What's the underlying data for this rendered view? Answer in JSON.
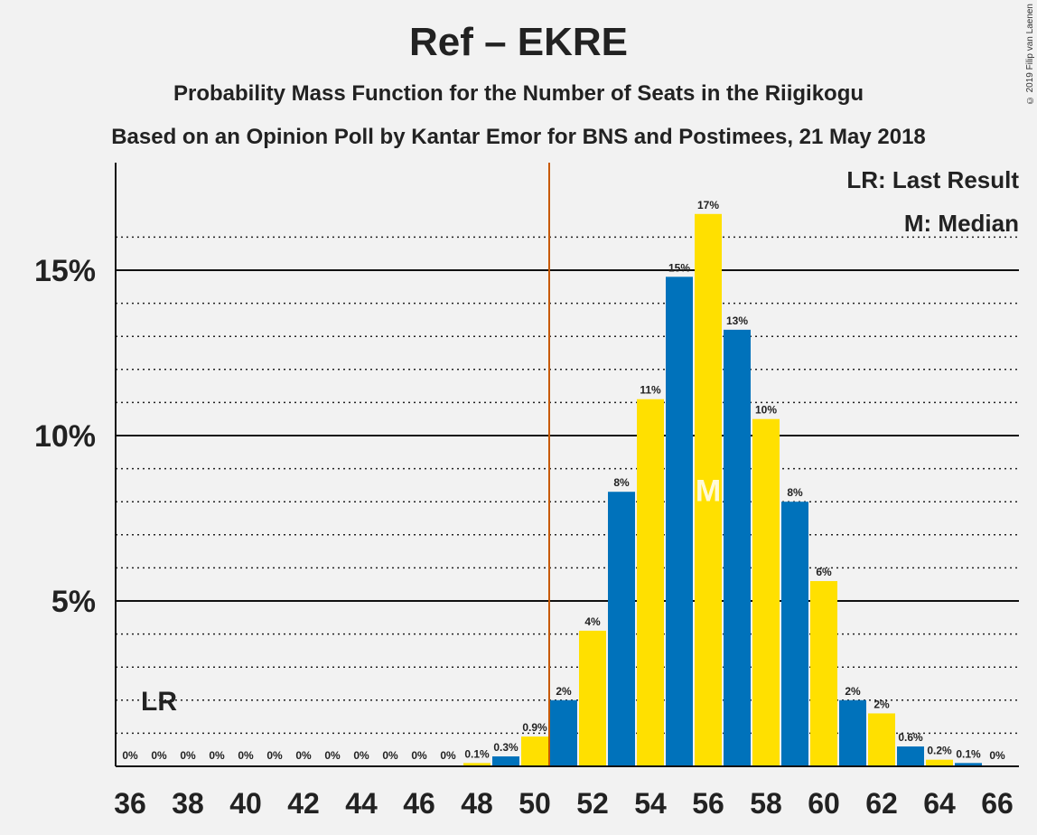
{
  "title": "Ref – EKRE",
  "subtitle": "Probability Mass Function for the Number of Seats in the Riigikogu",
  "subtitle2": "Based on an Opinion Poll by Kantar Emor for BNS and Postimees, 21 May 2018",
  "copyright": "© 2019 Filip van Laenen",
  "legend": {
    "last_result": "LR: Last Result",
    "median": "M: Median"
  },
  "markers": {
    "last_result_label": "LR",
    "median_label": "M"
  },
  "colors": {
    "blue": "#0072bb",
    "yellow": "#ffe000",
    "majority_line": "#c85a00",
    "background": "#f2f2f2"
  },
  "chart_data": {
    "type": "bar",
    "x": [
      36,
      37,
      38,
      39,
      40,
      41,
      42,
      43,
      44,
      45,
      46,
      47,
      48,
      49,
      50,
      51,
      52,
      53,
      54,
      55,
      56,
      57,
      58,
      59,
      60,
      61,
      62,
      63,
      64,
      65,
      66
    ],
    "values": [
      0,
      0,
      0,
      0,
      0,
      0,
      0,
      0,
      0,
      0,
      0,
      0,
      0.1,
      0.3,
      0.9,
      2.0,
      4.1,
      8.3,
      11.1,
      14.8,
      16.7,
      13.2,
      10.5,
      8.0,
      5.6,
      2.0,
      1.6,
      0.6,
      0.2,
      0.1,
      0
    ],
    "data_labels": [
      "0%",
      "0%",
      "0%",
      "0%",
      "0%",
      "0%",
      "0%",
      "0%",
      "0%",
      "0%",
      "0%",
      "0%",
      "0.1%",
      "0.3%",
      "0.9%",
      "2%",
      "4%",
      "8%",
      "11%",
      "15%",
      "17%",
      "13%",
      "10%",
      "8%",
      "6%",
      "2%",
      "2%",
      "0.6%",
      "0.2%",
      "0.1%",
      "0%"
    ],
    "x_tick_labels": [
      "36",
      "38",
      "40",
      "42",
      "44",
      "46",
      "48",
      "50",
      "52",
      "54",
      "56",
      "58",
      "60",
      "62",
      "64",
      "66"
    ],
    "y_tick_labels": [
      "5%",
      "10%",
      "15%"
    ],
    "y_ticks": [
      5,
      10,
      15
    ],
    "ylim": [
      0,
      18
    ],
    "majority_threshold": 50.5,
    "last_result": 37,
    "median": 56
  }
}
